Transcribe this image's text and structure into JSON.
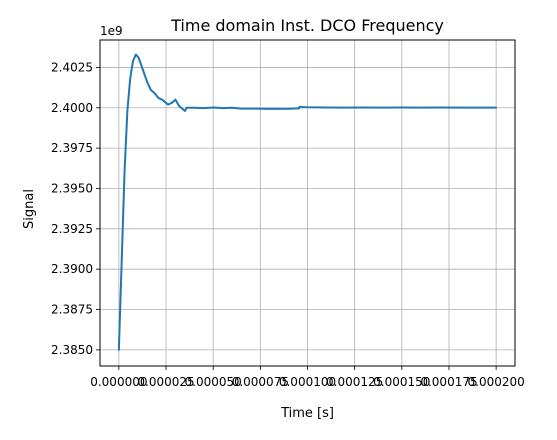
{
  "chart_data": {
    "type": "line",
    "title": "Time domain Inst. DCO Frequency",
    "xlabel": "Time [s]",
    "ylabel": "Signal",
    "offset_text": "1e9",
    "scale_factor": 1000000000,
    "xlim": [
      -1e-05,
      0.00021
    ],
    "ylim": [
      2384.0,
      2404.2
    ],
    "grid": true,
    "line_color": "#1f77b4",
    "x_ticks": [
      {
        "value": 0.0,
        "label": "0.000000"
      },
      {
        "value": 2.5e-05,
        "label": "0.000025"
      },
      {
        "value": 5e-05,
        "label": "0.000050"
      },
      {
        "value": 7.5e-05,
        "label": "0.000075"
      },
      {
        "value": 0.0001,
        "label": "0.000100"
      },
      {
        "value": 0.000125,
        "label": "0.000125"
      },
      {
        "value": 0.00015,
        "label": "0.000150"
      },
      {
        "value": 0.000175,
        "label": "0.000175"
      },
      {
        "value": 0.0002,
        "label": "0.000200"
      }
    ],
    "y_ticks": [
      {
        "value": 2385.0,
        "label": "2.3850"
      },
      {
        "value": 2387.5,
        "label": "2.3875"
      },
      {
        "value": 2390.0,
        "label": "2.3900"
      },
      {
        "value": 2392.5,
        "label": "2.3925"
      },
      {
        "value": 2395.0,
        "label": "2.3950"
      },
      {
        "value": 2397.5,
        "label": "2.3975"
      },
      {
        "value": 2400.0,
        "label": "2.4000"
      },
      {
        "value": 2402.5,
        "label": "2.4025"
      }
    ],
    "series": [
      {
        "x": [
          0.0,
          1.5e-06,
          3e-06,
          4.5e-06,
          6e-06,
          7.5e-06,
          9e-06,
          1.05e-05,
          1.2e-05,
          1.35e-05,
          1.5e-05,
          1.7e-05,
          1.9e-05,
          2.1e-05,
          2.3e-05,
          2.5e-05,
          2.6e-05,
          2.8e-05,
          3e-05,
          3.2e-05,
          3.4e-05,
          3.5e-05,
          3.6e-05,
          3.8e-05,
          4e-05,
          4.5e-05,
          5e-05,
          5.5e-05,
          6e-05,
          6.5e-05,
          7e-05,
          8e-05,
          9e-05,
          9.55e-05,
          9.56e-05,
          0.0001,
          0.00011,
          0.00012,
          0.00013,
          0.00014,
          0.00015,
          0.00016,
          0.00017,
          0.00018,
          0.00019,
          0.0002
        ],
        "values": [
          2385.0,
          2390.5,
          2396.0,
          2399.8,
          2401.8,
          2402.9,
          2403.3,
          2403.1,
          2402.6,
          2402.1,
          2401.6,
          2401.1,
          2400.9,
          2400.6,
          2400.5,
          2400.3,
          2400.2,
          2400.3,
          2400.5,
          2400.1,
          2399.9,
          2399.8,
          2400.0,
          2400.0,
          2400.0,
          2399.98,
          2400.02,
          2399.98,
          2400.0,
          2399.95,
          2399.95,
          2399.93,
          2399.94,
          2399.96,
          2400.05,
          2400.03,
          2400.02,
          2400.01,
          2400.02,
          2400.01,
          2400.02,
          2400.01,
          2400.02,
          2400.01,
          2400.01,
          2400.01
        ]
      }
    ]
  }
}
